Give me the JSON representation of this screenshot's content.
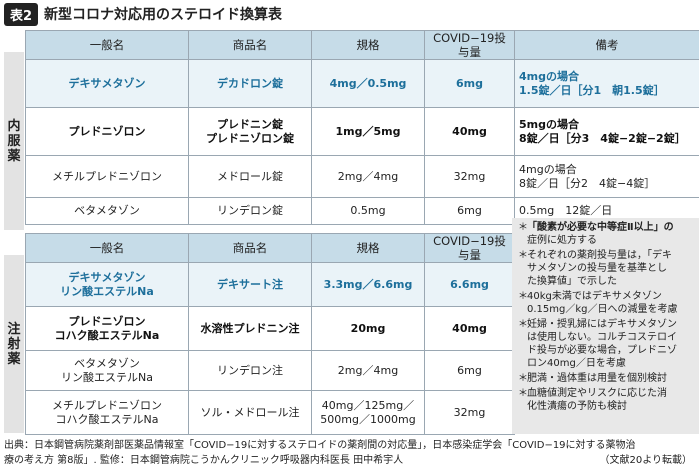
{
  "badge": "表2",
  "title": "新型コロナ対応用のステロイド換算表",
  "section_oral": [
    "内",
    "服",
    "薬"
  ],
  "section_injection": [
    "注",
    "射",
    "薬"
  ],
  "oral_headers": [
    "一般名",
    "商品名",
    "規格",
    "COVID−19投与量",
    "備考"
  ],
  "oral_rows": [
    {
      "generic": [
        "デキサメタゾン"
      ],
      "brand": [
        "デカドロン錠"
      ],
      "spec": "4mg／0.5mg",
      "dose": "6mg",
      "remarks": [
        "4mgの場合",
        "1.5錠／日［分1　朝1.5錠］"
      ],
      "style": "blue"
    },
    {
      "generic": [
        "プレドニゾロン"
      ],
      "brand": [
        "プレドニン錠",
        "プレドニゾロン錠"
      ],
      "spec": "1mg／5mg",
      "dose": "40mg",
      "remarks": [
        "5mgの場合",
        "8錠／日［分3　4錠−2錠−2錠］"
      ],
      "style": "bold"
    },
    {
      "generic": [
        "メチルプレドニゾロン"
      ],
      "brand": [
        "メドロール錠"
      ],
      "spec": "2mg／4mg",
      "dose": "32mg",
      "remarks": [
        "4mgの場合",
        "8錠／日［分2　4錠−4錠］"
      ],
      "style": "normal"
    },
    {
      "generic": [
        "ベタメタゾン"
      ],
      "brand": [
        "リンデロン錠"
      ],
      "spec": "0.5mg",
      "dose": "6mg",
      "remarks": [
        "0.5mg　12錠／日"
      ],
      "style": "normal"
    }
  ],
  "inj_headers": [
    "一般名",
    "商品名",
    "規格",
    "COVID−19投与量"
  ],
  "inj_rows": [
    {
      "generic": [
        "デキサメタゾン",
        "リン酸エステルNa"
      ],
      "brand": [
        "デキサート注"
      ],
      "spec": [
        "3.3mg／6.6mg"
      ],
      "dose": "6.6mg",
      "style": "blue"
    },
    {
      "generic": [
        "プレドニゾロン",
        "コハク酸エステルNa"
      ],
      "brand": [
        "水溶性プレドニン注"
      ],
      "spec": [
        "20mg"
      ],
      "dose": "40mg",
      "style": "bold"
    },
    {
      "generic": [
        "ベタメタゾン",
        "リン酸エステルNa"
      ],
      "brand": [
        "リンデロン注"
      ],
      "spec": [
        "2mg／4mg"
      ],
      "dose": "6mg",
      "style": "normal"
    },
    {
      "generic": [
        "メチルプレドニゾロン",
        "コハク酸エステルNa"
      ],
      "brand": [
        "ソル・メドロール注"
      ],
      "spec": [
        "40mg／125mg／",
        "500mg／1000mg"
      ],
      "dose": "32mg",
      "style": "normal"
    }
  ],
  "notes": [
    {
      "star": "＊",
      "lines": [
        "「酸素が必要な中等症Ⅱ以上」の",
        "症例に処方する"
      ],
      "boldFirst": true
    },
    {
      "star": "＊",
      "lines": [
        "それぞれの薬剤投与量は，「デキ",
        "サメタゾンの投与量を基準とし",
        "た換算値」で示した"
      ]
    },
    {
      "star": "＊",
      "lines": [
        "40kg未満ではデキサメタゾン",
        "0.15mg／kg／日への減量を考慮"
      ]
    },
    {
      "star": "＊",
      "lines": [
        "妊婦・授乳婦にはデキサメタゾン",
        "は使用しない。コルチコステロイ",
        "ド投与が必要な場合，プレドニゾ",
        "ロン40mg／日を考慮"
      ]
    },
    {
      "star": "＊",
      "lines": [
        "肥満・過体重は用量を個別検討"
      ]
    },
    {
      "star": "＊",
      "lines": [
        "血糖値測定やリスクに応じた消",
        "化性潰瘍の予防も検討"
      ]
    }
  ],
  "footer_line1": "出典：日本鋼管病院薬剤部医薬品情報室「COVID−19に対するステロイドの薬剤間の対応量」，日本感染症学会「COVID−19に対する薬物治",
  "footer_line2": "療の考え方 第8版」. 監修：日本鋼管病院こうかんクリニック呼吸器内科医長 田中希宇人",
  "footer_ref": "（文献20より転載）"
}
